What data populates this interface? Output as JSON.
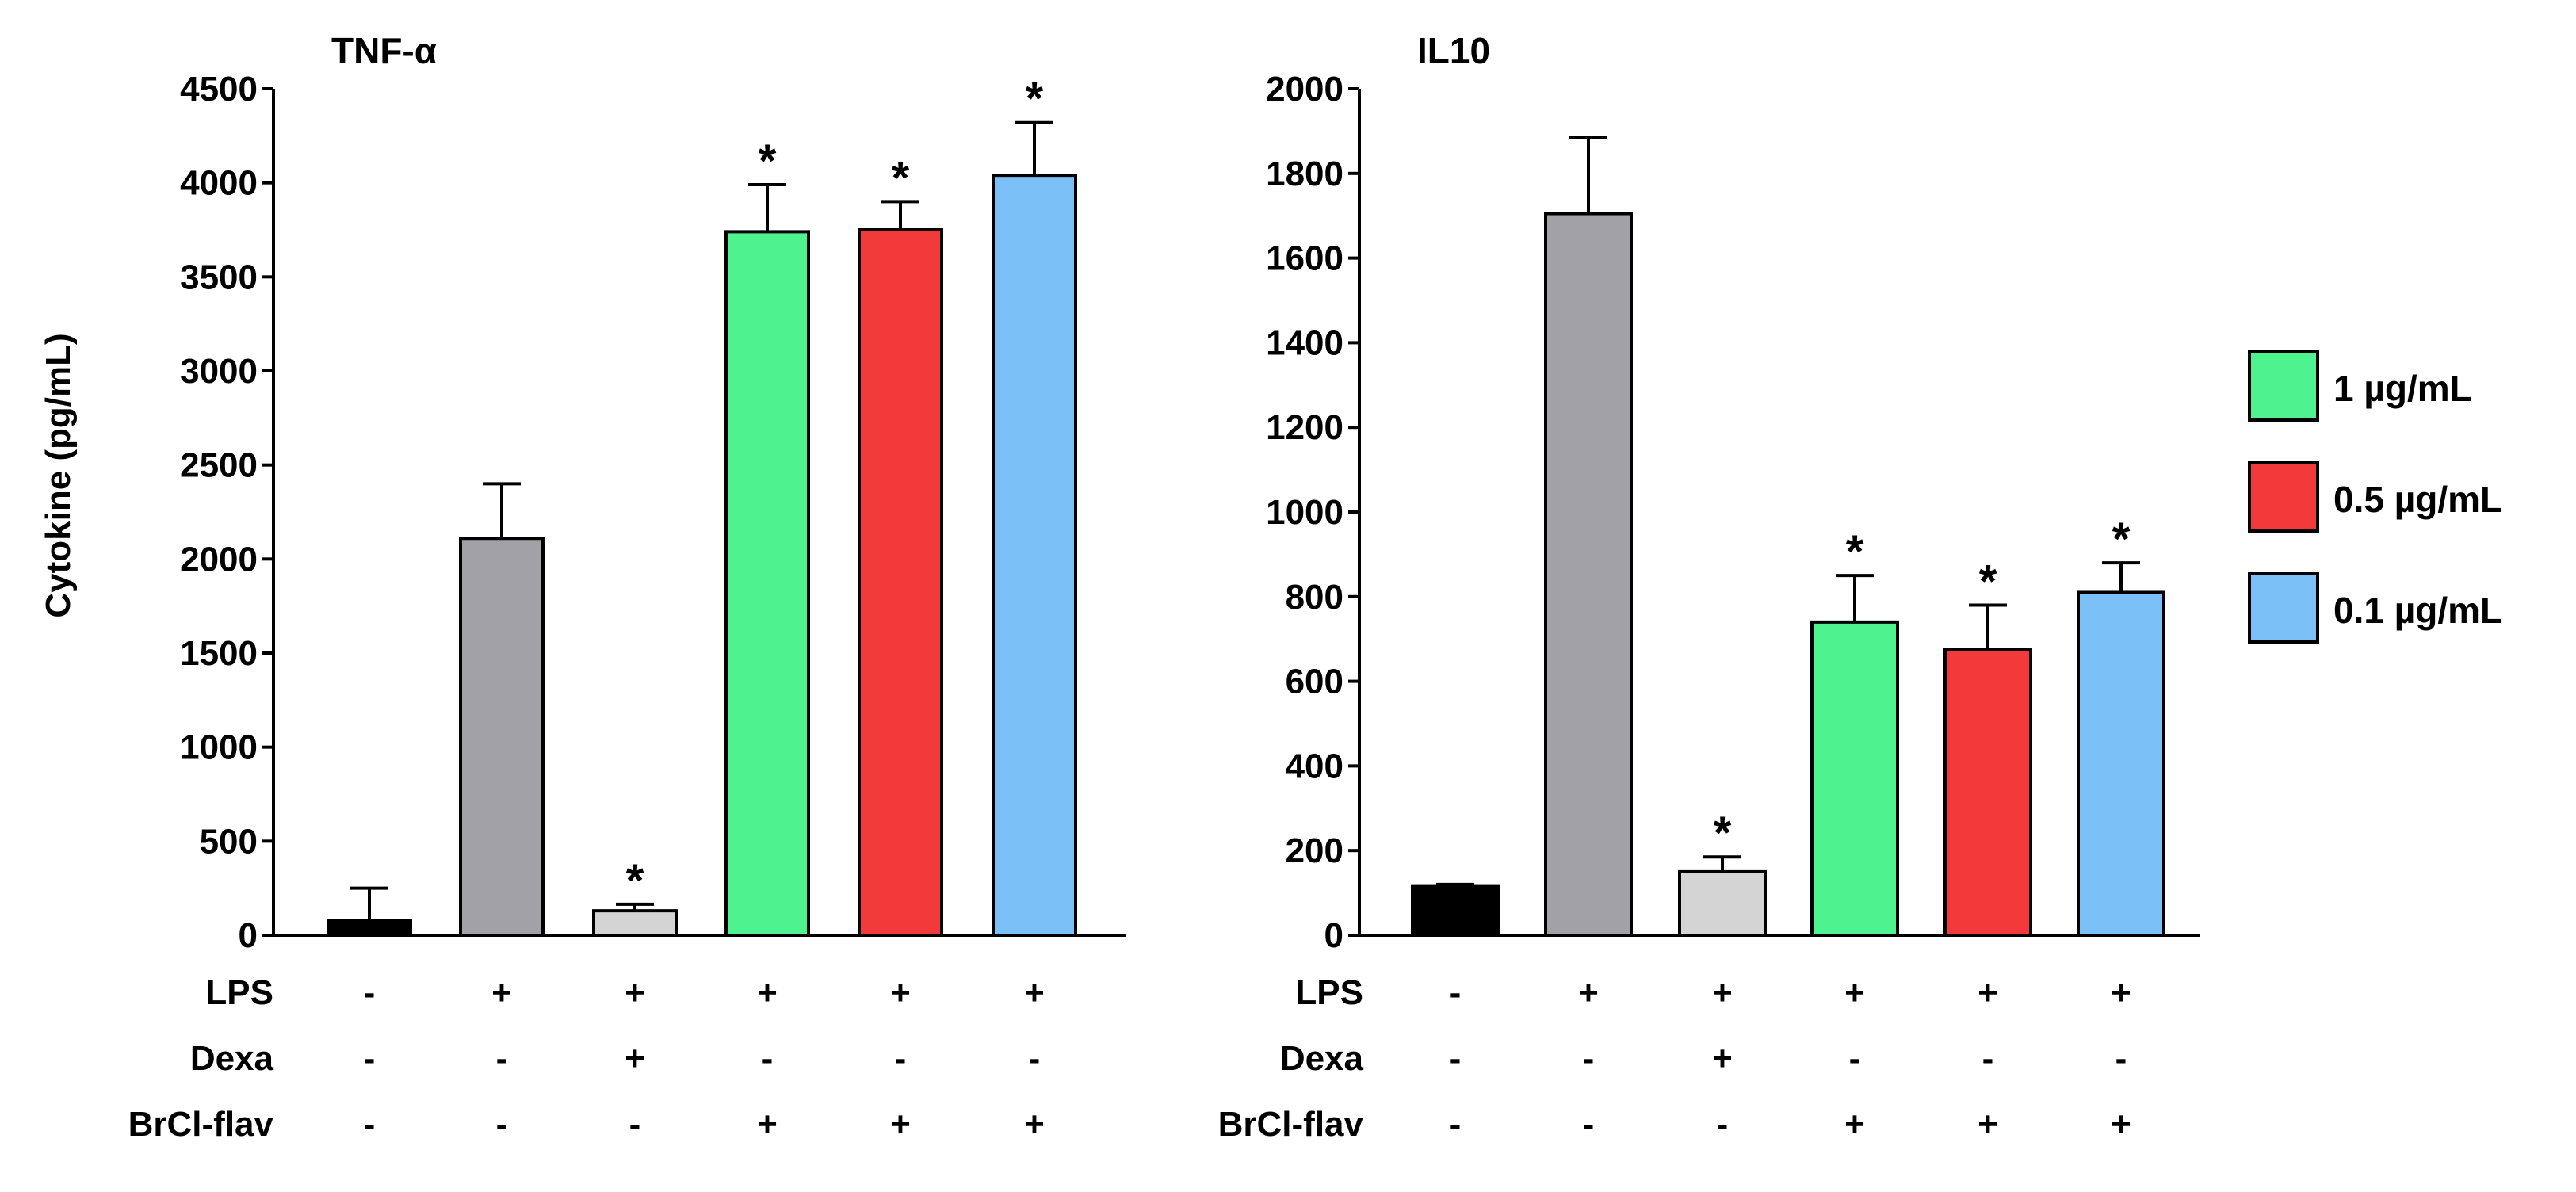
{
  "chart_data": [
    {
      "type": "bar",
      "title": "TNF-α",
      "ylabel": "Cytokine (pg/mL)",
      "xlabel": "",
      "ylim": [
        0,
        4500
      ],
      "yticks": [
        0,
        500,
        1000,
        1500,
        2000,
        2500,
        3000,
        3500,
        4000,
        4500
      ],
      "grid": false,
      "bars": [
        {
          "value": 80,
          "error": 170,
          "color": "#000000",
          "sig": ""
        },
        {
          "value": 2110,
          "error": 290,
          "color": "#a2a1a6",
          "sig": ""
        },
        {
          "value": 130,
          "error": 35,
          "color": "#d4d4d4",
          "sig": "*"
        },
        {
          "value": 3740,
          "error": 250,
          "color": "#4ef28f",
          "sig": "*"
        },
        {
          "value": 3750,
          "error": 150,
          "color": "#f23a3a",
          "sig": "*"
        },
        {
          "value": 4040,
          "error": 280,
          "color": "#7bbff7",
          "sig": "*"
        }
      ]
    },
    {
      "type": "bar",
      "title": "IL10",
      "ylabel": "",
      "xlabel": "",
      "ylim": [
        0,
        2000
      ],
      "yticks": [
        0,
        200,
        400,
        600,
        800,
        1000,
        1200,
        1400,
        1600,
        1800,
        2000
      ],
      "grid": false,
      "bars": [
        {
          "value": 115,
          "error": 5,
          "color": "#000000",
          "sig": ""
        },
        {
          "value": 1705,
          "error": 180,
          "color": "#a2a1a6",
          "sig": ""
        },
        {
          "value": 150,
          "error": 35,
          "color": "#d4d4d4",
          "sig": "*"
        },
        {
          "value": 740,
          "error": 110,
          "color": "#4ef28f",
          "sig": "*"
        },
        {
          "value": 675,
          "error": 105,
          "color": "#f23a3a",
          "sig": "*"
        },
        {
          "value": 810,
          "error": 70,
          "color": "#7bbff7",
          "sig": "*"
        }
      ]
    }
  ],
  "conditions": [
    {
      "label": "LPS",
      "values": [
        "-",
        "+",
        "+",
        "+",
        "+",
        "+"
      ]
    },
    {
      "label": "Dexa",
      "values": [
        "-",
        "-",
        "+",
        "-",
        "-",
        "-"
      ]
    },
    {
      "label": "BrCl-flav",
      "values": [
        "-",
        "-",
        "-",
        "+",
        "+",
        "+"
      ]
    }
  ],
  "legend": {
    "position": "right",
    "items": [
      {
        "label": "1 µg/mL",
        "color": "#4ef28f"
      },
      {
        "label": "0.5 µg/mL",
        "color": "#f23a3a"
      },
      {
        "label": "0.1 µg/mL",
        "color": "#7bbff7"
      }
    ]
  }
}
